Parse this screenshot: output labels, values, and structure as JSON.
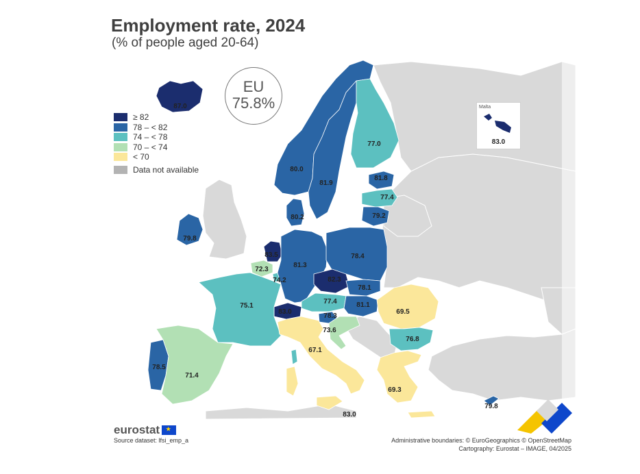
{
  "title": "Employment rate, 2024",
  "subtitle": "(% of people aged 20-64)",
  "eu_badge": {
    "label": "EU",
    "value": "75.8%"
  },
  "legend": {
    "items": [
      {
        "label": "≥ 82",
        "color": "#1b2d6e"
      },
      {
        "label": "78 – < 82",
        "color": "#2a65a5"
      },
      {
        "label": "74 – < 78",
        "color": "#5cc0c0"
      },
      {
        "label": "70 – < 74",
        "color": "#b2e0b4"
      },
      {
        "label": "< 70",
        "color": "#fbe79a"
      }
    ],
    "not_available": {
      "label": "Data not available",
      "color": "#b3b3b3"
    }
  },
  "inset": {
    "title": "Malta",
    "value": "83.0"
  },
  "map_values": [
    {
      "country": "iceland",
      "value": "87.0"
    },
    {
      "country": "norway",
      "value": "80.0"
    },
    {
      "country": "sweden",
      "value": "81.9"
    },
    {
      "country": "finland",
      "value": "77.0"
    },
    {
      "country": "estonia",
      "value": "81.8"
    },
    {
      "country": "latvia",
      "value": "77.4"
    },
    {
      "country": "lithuania",
      "value": "79.2"
    },
    {
      "country": "denmark",
      "value": "80.2"
    },
    {
      "country": "ireland",
      "value": "79.8"
    },
    {
      "country": "netherlands",
      "value": "83.5"
    },
    {
      "country": "belgium",
      "value": "72.3"
    },
    {
      "country": "luxembourg",
      "value": "74.2"
    },
    {
      "country": "germany",
      "value": "81.3"
    },
    {
      "country": "poland",
      "value": "78.4"
    },
    {
      "country": "czechia",
      "value": "82.3"
    },
    {
      "country": "slovakia",
      "value": "78.1"
    },
    {
      "country": "austria",
      "value": "77.4"
    },
    {
      "country": "hungary",
      "value": "81.1"
    },
    {
      "country": "slovenia",
      "value": "78.3"
    },
    {
      "country": "croatia",
      "value": "73.6"
    },
    {
      "country": "switzerland",
      "value": "83.0"
    },
    {
      "country": "france",
      "value": "75.1"
    },
    {
      "country": "italy",
      "value": "67.1"
    },
    {
      "country": "romania",
      "value": "69.5"
    },
    {
      "country": "bulgaria",
      "value": "76.8"
    },
    {
      "country": "greece",
      "value": "69.3"
    },
    {
      "country": "portugal",
      "value": "78.5"
    },
    {
      "country": "spain",
      "value": "71.4"
    },
    {
      "country": "cyprus",
      "value": "79.8"
    },
    {
      "country": "malta-main",
      "value": "83.0"
    }
  ],
  "brand": "eurostat",
  "source": "Source dataset: lfsi_emp_a",
  "credits": {
    "line1": "Administrative boundaries: © EuroGeographics © OpenStreetMap",
    "line2": "Cartography: Eurostat – IMAGE, 04/2025"
  }
}
